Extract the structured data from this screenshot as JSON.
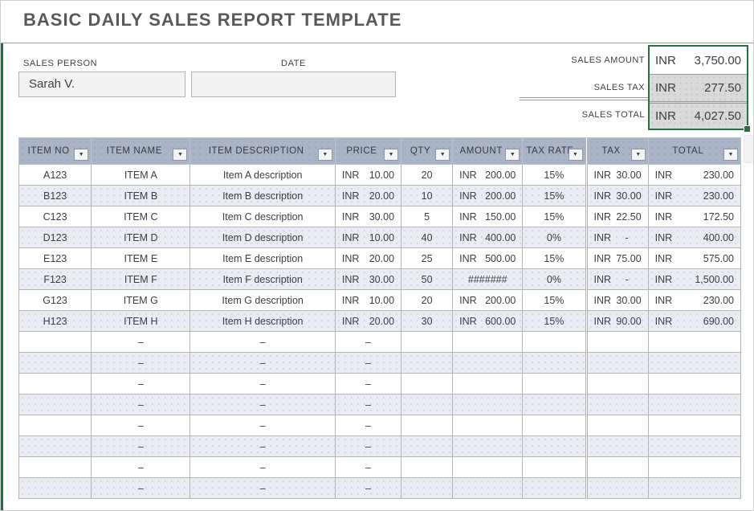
{
  "title": "BASIC DAILY SALES REPORT TEMPLATE",
  "form": {
    "sales_person": {
      "label": "SALES PERSON",
      "value": "Sarah V."
    },
    "date": {
      "label": "DATE",
      "value": ""
    }
  },
  "summary": {
    "sales_amount": {
      "label": "SALES AMOUNT",
      "currency": "INR",
      "value": "3,750.00"
    },
    "sales_tax": {
      "label": "SALES TAX",
      "currency": "INR",
      "value": "277.50"
    },
    "sales_total": {
      "label": "SALES TOTAL",
      "currency": "INR",
      "value": "4,027.50"
    }
  },
  "table": {
    "columns": [
      "ITEM NO",
      "ITEM NAME",
      "ITEM DESCRIPTION",
      "PRICE",
      "QTY",
      "AMOUNT",
      "TAX RATE",
      "TAX",
      "TOTAL"
    ],
    "filter_icon": "▼",
    "rows": [
      {
        "item_no": "A123",
        "name": "ITEM A",
        "description": "Item A description",
        "price": {
          "cur": "INR",
          "val": "10.00"
        },
        "qty": "20",
        "amount": {
          "cur": "INR",
          "val": "200.00"
        },
        "tax_rate": "15%",
        "tax": {
          "cur": "INR",
          "val": "30.00"
        },
        "total": {
          "cur": "INR",
          "val": "230.00"
        }
      },
      {
        "item_no": "B123",
        "name": "ITEM B",
        "description": "Item B description",
        "price": {
          "cur": "INR",
          "val": "20.00"
        },
        "qty": "10",
        "amount": {
          "cur": "INR",
          "val": "200.00"
        },
        "tax_rate": "15%",
        "tax": {
          "cur": "INR",
          "val": "30.00"
        },
        "total": {
          "cur": "INR",
          "val": "230.00"
        }
      },
      {
        "item_no": "C123",
        "name": "ITEM C",
        "description": "Item C description",
        "price": {
          "cur": "INR",
          "val": "30.00"
        },
        "qty": "5",
        "amount": {
          "cur": "INR",
          "val": "150.00"
        },
        "tax_rate": "15%",
        "tax": {
          "cur": "INR",
          "val": "22.50"
        },
        "total": {
          "cur": "INR",
          "val": "172.50"
        }
      },
      {
        "item_no": "D123",
        "name": "ITEM D",
        "description": "Item D description",
        "price": {
          "cur": "INR",
          "val": "10.00"
        },
        "qty": "40",
        "amount": {
          "cur": "INR",
          "val": "400.00"
        },
        "tax_rate": "0%",
        "tax": {
          "cur": "INR",
          "val": "-"
        },
        "total": {
          "cur": "INR",
          "val": "400.00"
        }
      },
      {
        "item_no": "E123",
        "name": "ITEM E",
        "description": "Item E description",
        "price": {
          "cur": "INR",
          "val": "20.00"
        },
        "qty": "25",
        "amount": {
          "cur": "INR",
          "val": "500.00"
        },
        "tax_rate": "15%",
        "tax": {
          "cur": "INR",
          "val": "75.00"
        },
        "total": {
          "cur": "INR",
          "val": "575.00"
        }
      },
      {
        "item_no": "F123",
        "name": "ITEM F",
        "description": "Item F description",
        "price": {
          "cur": "INR",
          "val": "30.00"
        },
        "qty": "50",
        "amount": {
          "cur": "",
          "val": "#######"
        },
        "tax_rate": "0%",
        "tax": {
          "cur": "INR",
          "val": "-"
        },
        "total": {
          "cur": "INR",
          "val": "1,500.00"
        }
      },
      {
        "item_no": "G123",
        "name": "ITEM G",
        "description": "Item G description",
        "price": {
          "cur": "INR",
          "val": "10.00"
        },
        "qty": "20",
        "amount": {
          "cur": "INR",
          "val": "200.00"
        },
        "tax_rate": "15%",
        "tax": {
          "cur": "INR",
          "val": "30.00"
        },
        "total": {
          "cur": "INR",
          "val": "230.00"
        }
      },
      {
        "item_no": "H123",
        "name": "ITEM H",
        "description": "Item H description",
        "price": {
          "cur": "INR",
          "val": "20.00"
        },
        "qty": "30",
        "amount": {
          "cur": "INR",
          "val": "600.00"
        },
        "tax_rate": "15%",
        "tax": {
          "cur": "INR",
          "val": "90.00"
        },
        "total": {
          "cur": "INR",
          "val": "690.00"
        }
      }
    ],
    "empty_rows_count": 8,
    "empty_cell_dash": "–"
  },
  "colors": {
    "accent_green": "#217346",
    "header_bg": "#a9b4c6",
    "row_alt_bg": "#e9ecf3",
    "summary_gray_bg": "#d9d9d9",
    "title_text": "#595959"
  }
}
